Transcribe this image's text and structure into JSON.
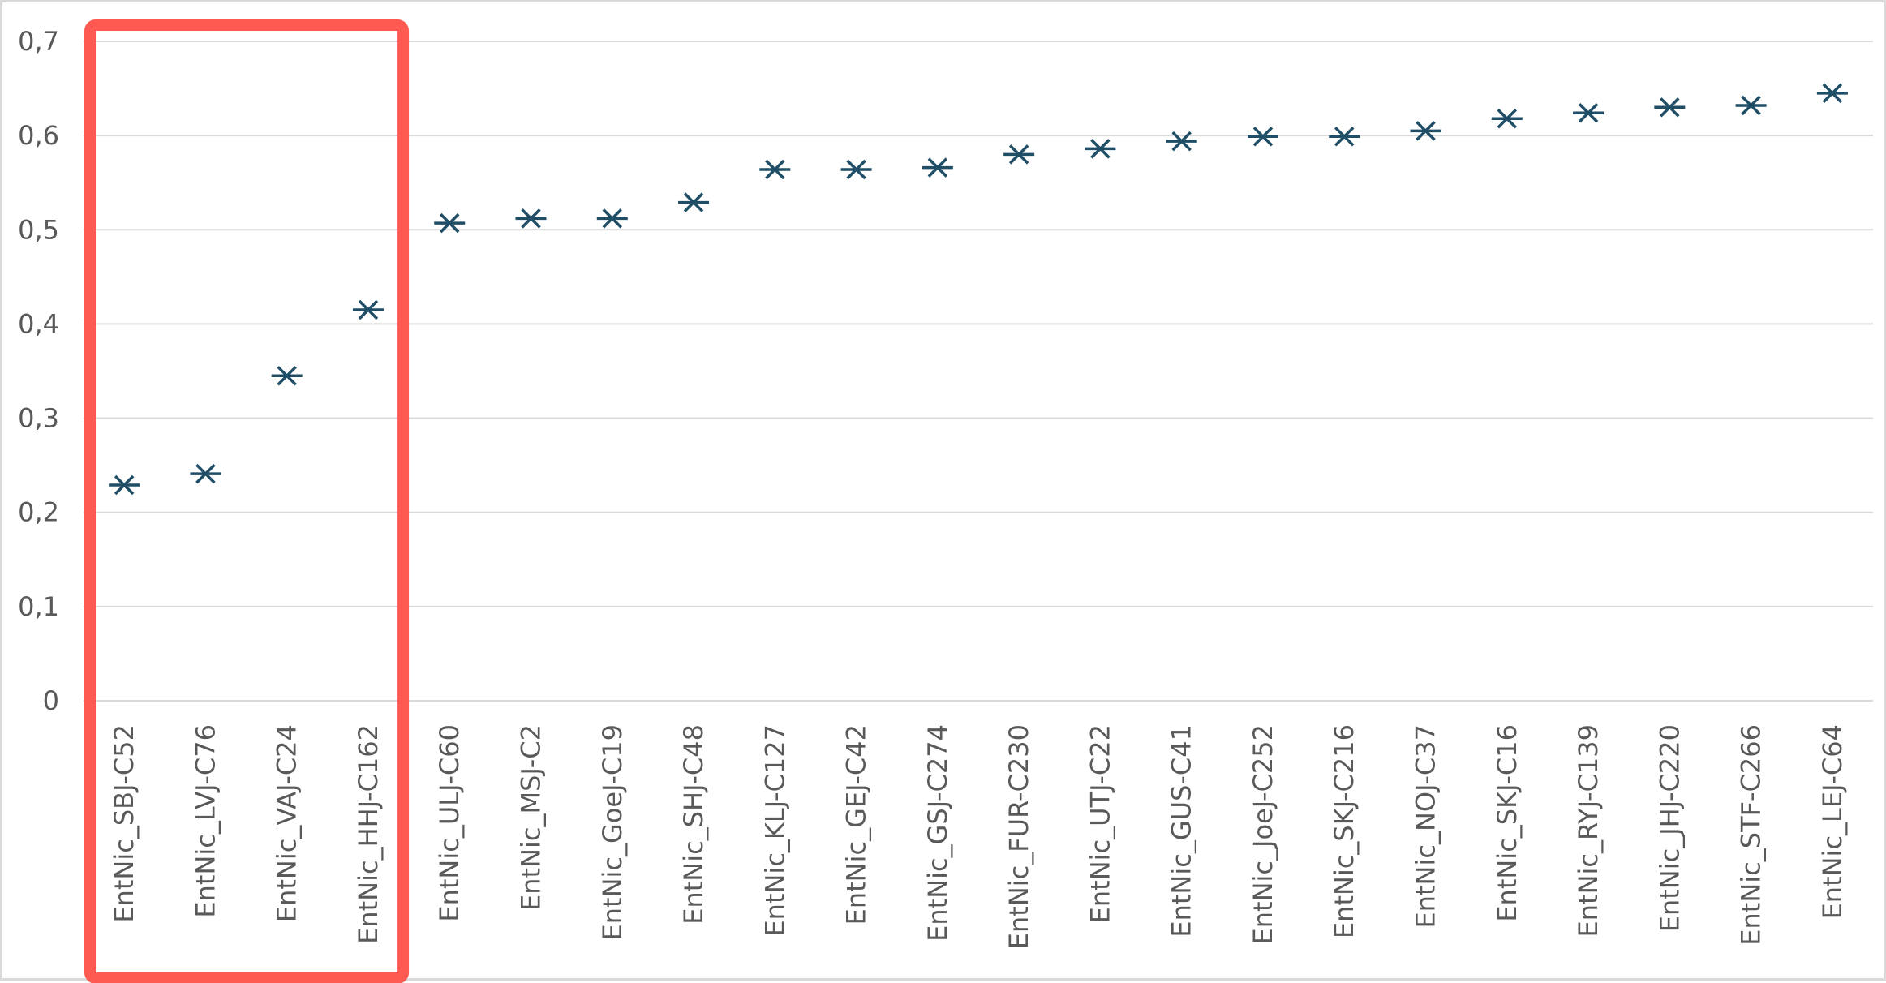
{
  "chart_data": {
    "type": "scatter",
    "categories": [
      "EntNic_SBJ-C52",
      "EntNic_LVJ-C76",
      "EntNic_VAJ-C24",
      "EntNic_HHJ-C162",
      "EntNic_ULJ-C60",
      "EntNic_MSJ-C2",
      "EntNic_GoeJ-C19",
      "EntNic_SHJ-C48",
      "EntNic_KLJ-C127",
      "EntNic_GEJ-C42",
      "EntNic_GSJ-C274",
      "EntNic_FUR-C230",
      "EntNic_UTJ-C22",
      "EntNic_GUS-C41",
      "EntNic_JoeJ-C252",
      "EntNic_SKJ-C216",
      "EntNic_NOJ-C37",
      "EntNic_SKJ-C16",
      "EntNic_RYJ-C139",
      "EntNic_JHJ-C220",
      "EntNic_STF-C266",
      "EntNic_LEJ-C64"
    ],
    "values": [
      0.229,
      0.241,
      0.345,
      0.415,
      0.507,
      0.512,
      0.512,
      0.529,
      0.564,
      0.564,
      0.566,
      0.58,
      0.586,
      0.594,
      0.599,
      0.599,
      0.605,
      0.618,
      0.624,
      0.63,
      0.632,
      0.645
    ],
    "yticks": [
      "0",
      "0,1",
      "0,2",
      "0,3",
      "0,4",
      "0,5",
      "0,6",
      "0,7"
    ],
    "ylim": [
      0,
      0.7
    ],
    "grid": true,
    "marker": "asterisk",
    "marker_color": "#1f4e66",
    "highlight": {
      "color": "#ff5a52",
      "categories": [
        "EntNic_SBJ-C52",
        "EntNic_LVJ-C76",
        "EntNic_VAJ-C24",
        "EntNic_HHJ-C162"
      ]
    },
    "title": "",
    "xlabel": "",
    "ylabel": ""
  }
}
